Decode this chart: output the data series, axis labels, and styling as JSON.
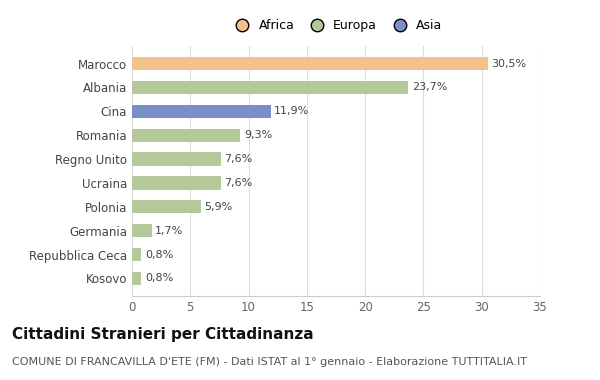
{
  "categories": [
    "Marocco",
    "Albania",
    "Cina",
    "Romania",
    "Regno Unito",
    "Ucraina",
    "Polonia",
    "Germania",
    "Repubblica Ceca",
    "Kosovo"
  ],
  "values": [
    30.5,
    23.7,
    11.9,
    9.3,
    7.6,
    7.6,
    5.9,
    1.7,
    0.8,
    0.8
  ],
  "labels": [
    "30,5%",
    "23,7%",
    "11,9%",
    "9,3%",
    "7,6%",
    "7,6%",
    "5,9%",
    "1,7%",
    "0,8%",
    "0,8%"
  ],
  "colors": [
    "#F5C18A",
    "#B5C89A",
    "#7B8EC8",
    "#B5C89A",
    "#B5C89A",
    "#B5C89A",
    "#B5C89A",
    "#B5C89A",
    "#B5C89A",
    "#B5C89A"
  ],
  "legend_labels": [
    "Africa",
    "Europa",
    "Asia"
  ],
  "legend_colors": [
    "#F5C18A",
    "#B5C89A",
    "#7B8EC8"
  ],
  "title": "Cittadini Stranieri per Cittadinanza",
  "subtitle": "COMUNE DI FRANCAVILLA D'ETE (FM) - Dati ISTAT al 1° gennaio - Elaborazione TUTTITALIA.IT",
  "xlim": [
    0,
    35
  ],
  "xticks": [
    0,
    5,
    10,
    15,
    20,
    25,
    30,
    35
  ],
  "background_color": "#ffffff",
  "bar_height": 0.55,
  "title_fontsize": 11,
  "subtitle_fontsize": 8,
  "label_fontsize": 8,
  "tick_fontsize": 8.5,
  "legend_fontsize": 9
}
